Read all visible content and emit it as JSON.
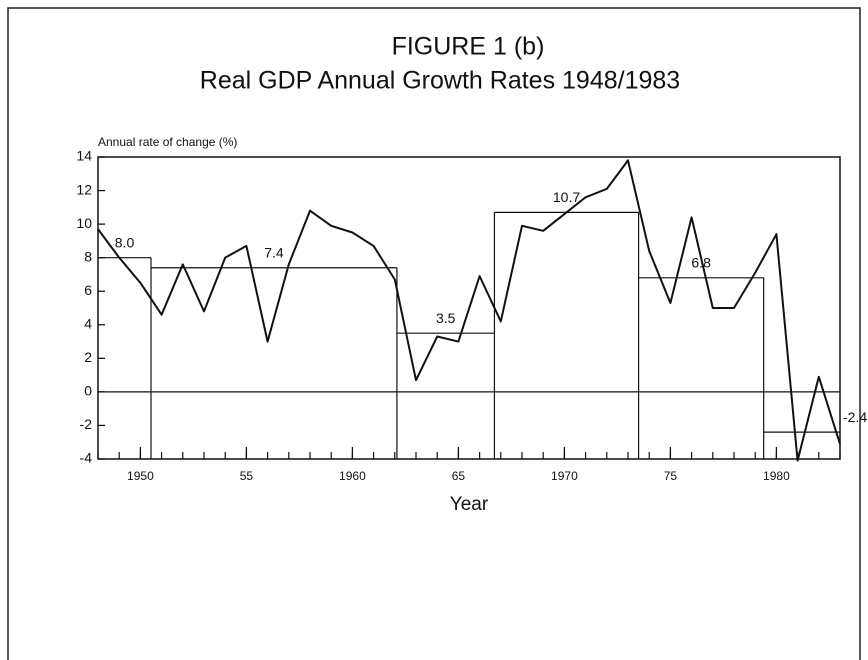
{
  "chart_data": {
    "type": "line",
    "title": "FIGURE 1 (b)",
    "subtitle": "Real GDP Annual Growth Rates  1948/1983",
    "y_label": "Annual rate of change (%)",
    "x_label": "Year",
    "x": [
      1948,
      1949,
      1950,
      1951,
      1952,
      1953,
      1954,
      1955,
      1956,
      1957,
      1958,
      1959,
      1960,
      1961,
      1962,
      1963,
      1964,
      1965,
      1966,
      1967,
      1968,
      1969,
      1970,
      1971,
      1972,
      1973,
      1974,
      1975,
      1976,
      1977,
      1978,
      1979,
      1980,
      1981,
      1982,
      1983
    ],
    "values": [
      9.7,
      8.0,
      6.5,
      4.6,
      7.6,
      4.8,
      8.0,
      8.7,
      3.0,
      7.6,
      10.8,
      9.9,
      9.5,
      8.7,
      6.7,
      0.7,
      3.3,
      3.0,
      6.9,
      4.2,
      9.9,
      9.6,
      10.6,
      11.6,
      12.1,
      13.8,
      8.4,
      5.3,
      10.4,
      5.0,
      5.0,
      7.1,
      9.4,
      -4.1,
      0.9,
      -3.1
    ],
    "color": "#111111",
    "period_bounds": [
      1948,
      1950.5,
      1962.1,
      1966.7,
      1973.5,
      1979.4,
      1983
    ],
    "period_values": [
      8.0,
      7.4,
      3.5,
      10.7,
      6.8,
      -2.4
    ],
    "period_labels": [
      "8.0",
      "7.4",
      "3.5",
      "10.7",
      "6.8",
      "-2.4"
    ],
    "xlim": [
      1948,
      1983
    ],
    "xticks": [
      1950,
      {
        "value": 1955,
        "label": "55"
      },
      1960,
      {
        "value": 1965,
        "label": "65"
      },
      1970,
      {
        "value": 1975,
        "label": "75"
      },
      1980
    ],
    "ylim": [
      -4,
      14
    ],
    "yticks": [
      -4,
      -2,
      0,
      2,
      4,
      6,
      8,
      10,
      12,
      14
    ]
  }
}
